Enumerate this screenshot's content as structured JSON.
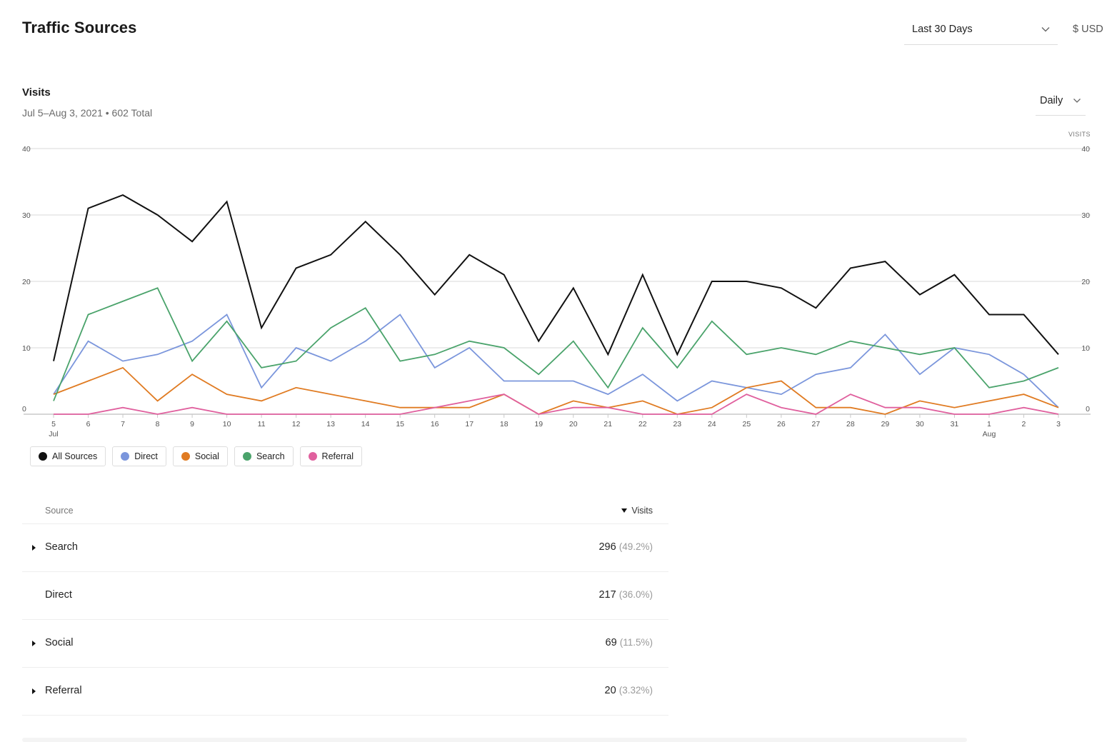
{
  "header": {
    "title": "Traffic Sources",
    "range": "Last 30 Days",
    "currency": "$ USD"
  },
  "visits": {
    "title": "Visits",
    "subtitle": "Jul 5–Aug 3, 2021 • 602 Total",
    "period": "Daily",
    "axis_unit": "VISITS"
  },
  "chart_data": {
    "type": "line",
    "x": [
      "5",
      "6",
      "7",
      "8",
      "9",
      "10",
      "11",
      "12",
      "13",
      "14",
      "15",
      "16",
      "17",
      "18",
      "19",
      "20",
      "21",
      "22",
      "23",
      "24",
      "25",
      "26",
      "27",
      "28",
      "29",
      "30",
      "31",
      "1",
      "2",
      "3"
    ],
    "x_month_labels": [
      {
        "index": 0,
        "label": "Jul"
      },
      {
        "index": 27,
        "label": "Aug"
      }
    ],
    "ylim": [
      0,
      40
    ],
    "yticks": [
      0,
      10,
      20,
      30,
      40
    ],
    "grid": true,
    "series": [
      {
        "name": "All Sources",
        "color": "#111111",
        "values": [
          8,
          31,
          33,
          30,
          26,
          32,
          13,
          22,
          24,
          29,
          24,
          18,
          24,
          21,
          11,
          19,
          9,
          21,
          9,
          20,
          20,
          19,
          16,
          22,
          23,
          18,
          21,
          15,
          15,
          9
        ]
      },
      {
        "name": "Direct",
        "color": "#7b96dc",
        "values": [
          3,
          11,
          8,
          9,
          11,
          15,
          4,
          10,
          8,
          11,
          15,
          7,
          10,
          5,
          5,
          5,
          3,
          6,
          2,
          5,
          4,
          3,
          6,
          7,
          12,
          6,
          10,
          9,
          6,
          1
        ]
      },
      {
        "name": "Social",
        "color": "#e07b22",
        "values": [
          3,
          5,
          7,
          2,
          6,
          3,
          2,
          4,
          3,
          2,
          1,
          1,
          1,
          3,
          0,
          2,
          1,
          2,
          0,
          1,
          4,
          5,
          1,
          1,
          0,
          2,
          1,
          2,
          3,
          1
        ]
      },
      {
        "name": "Search",
        "color": "#4aa36b",
        "values": [
          2,
          15,
          17,
          19,
          8,
          14,
          7,
          8,
          13,
          16,
          8,
          9,
          11,
          10,
          6,
          11,
          4,
          13,
          7,
          14,
          9,
          10,
          9,
          11,
          10,
          9,
          10,
          4,
          5,
          7
        ]
      },
      {
        "name": "Referral",
        "color": "#e0609e",
        "values": [
          0,
          0,
          1,
          0,
          1,
          0,
          0,
          0,
          0,
          0,
          0,
          1,
          2,
          3,
          0,
          1,
          1,
          0,
          0,
          0,
          3,
          1,
          0,
          3,
          1,
          1,
          0,
          0,
          1,
          0
        ]
      }
    ]
  },
  "legend": [
    {
      "label": "All Sources",
      "color": "#111111"
    },
    {
      "label": "Direct",
      "color": "#7b96dc"
    },
    {
      "label": "Social",
      "color": "#e07b22"
    },
    {
      "label": "Search",
      "color": "#4aa36b"
    },
    {
      "label": "Referral",
      "color": "#e0609e"
    }
  ],
  "table": {
    "col_source": "Source",
    "col_visits": "Visits",
    "rows": [
      {
        "source": "Search",
        "value": "296",
        "pct": "(49.2%)",
        "expandable": true
      },
      {
        "source": "Direct",
        "value": "217",
        "pct": "(36.0%)",
        "expandable": false
      },
      {
        "source": "Social",
        "value": "69",
        "pct": "(11.5%)",
        "expandable": true
      },
      {
        "source": "Referral",
        "value": "20",
        "pct": "(3.32%)",
        "expandable": true
      }
    ]
  }
}
